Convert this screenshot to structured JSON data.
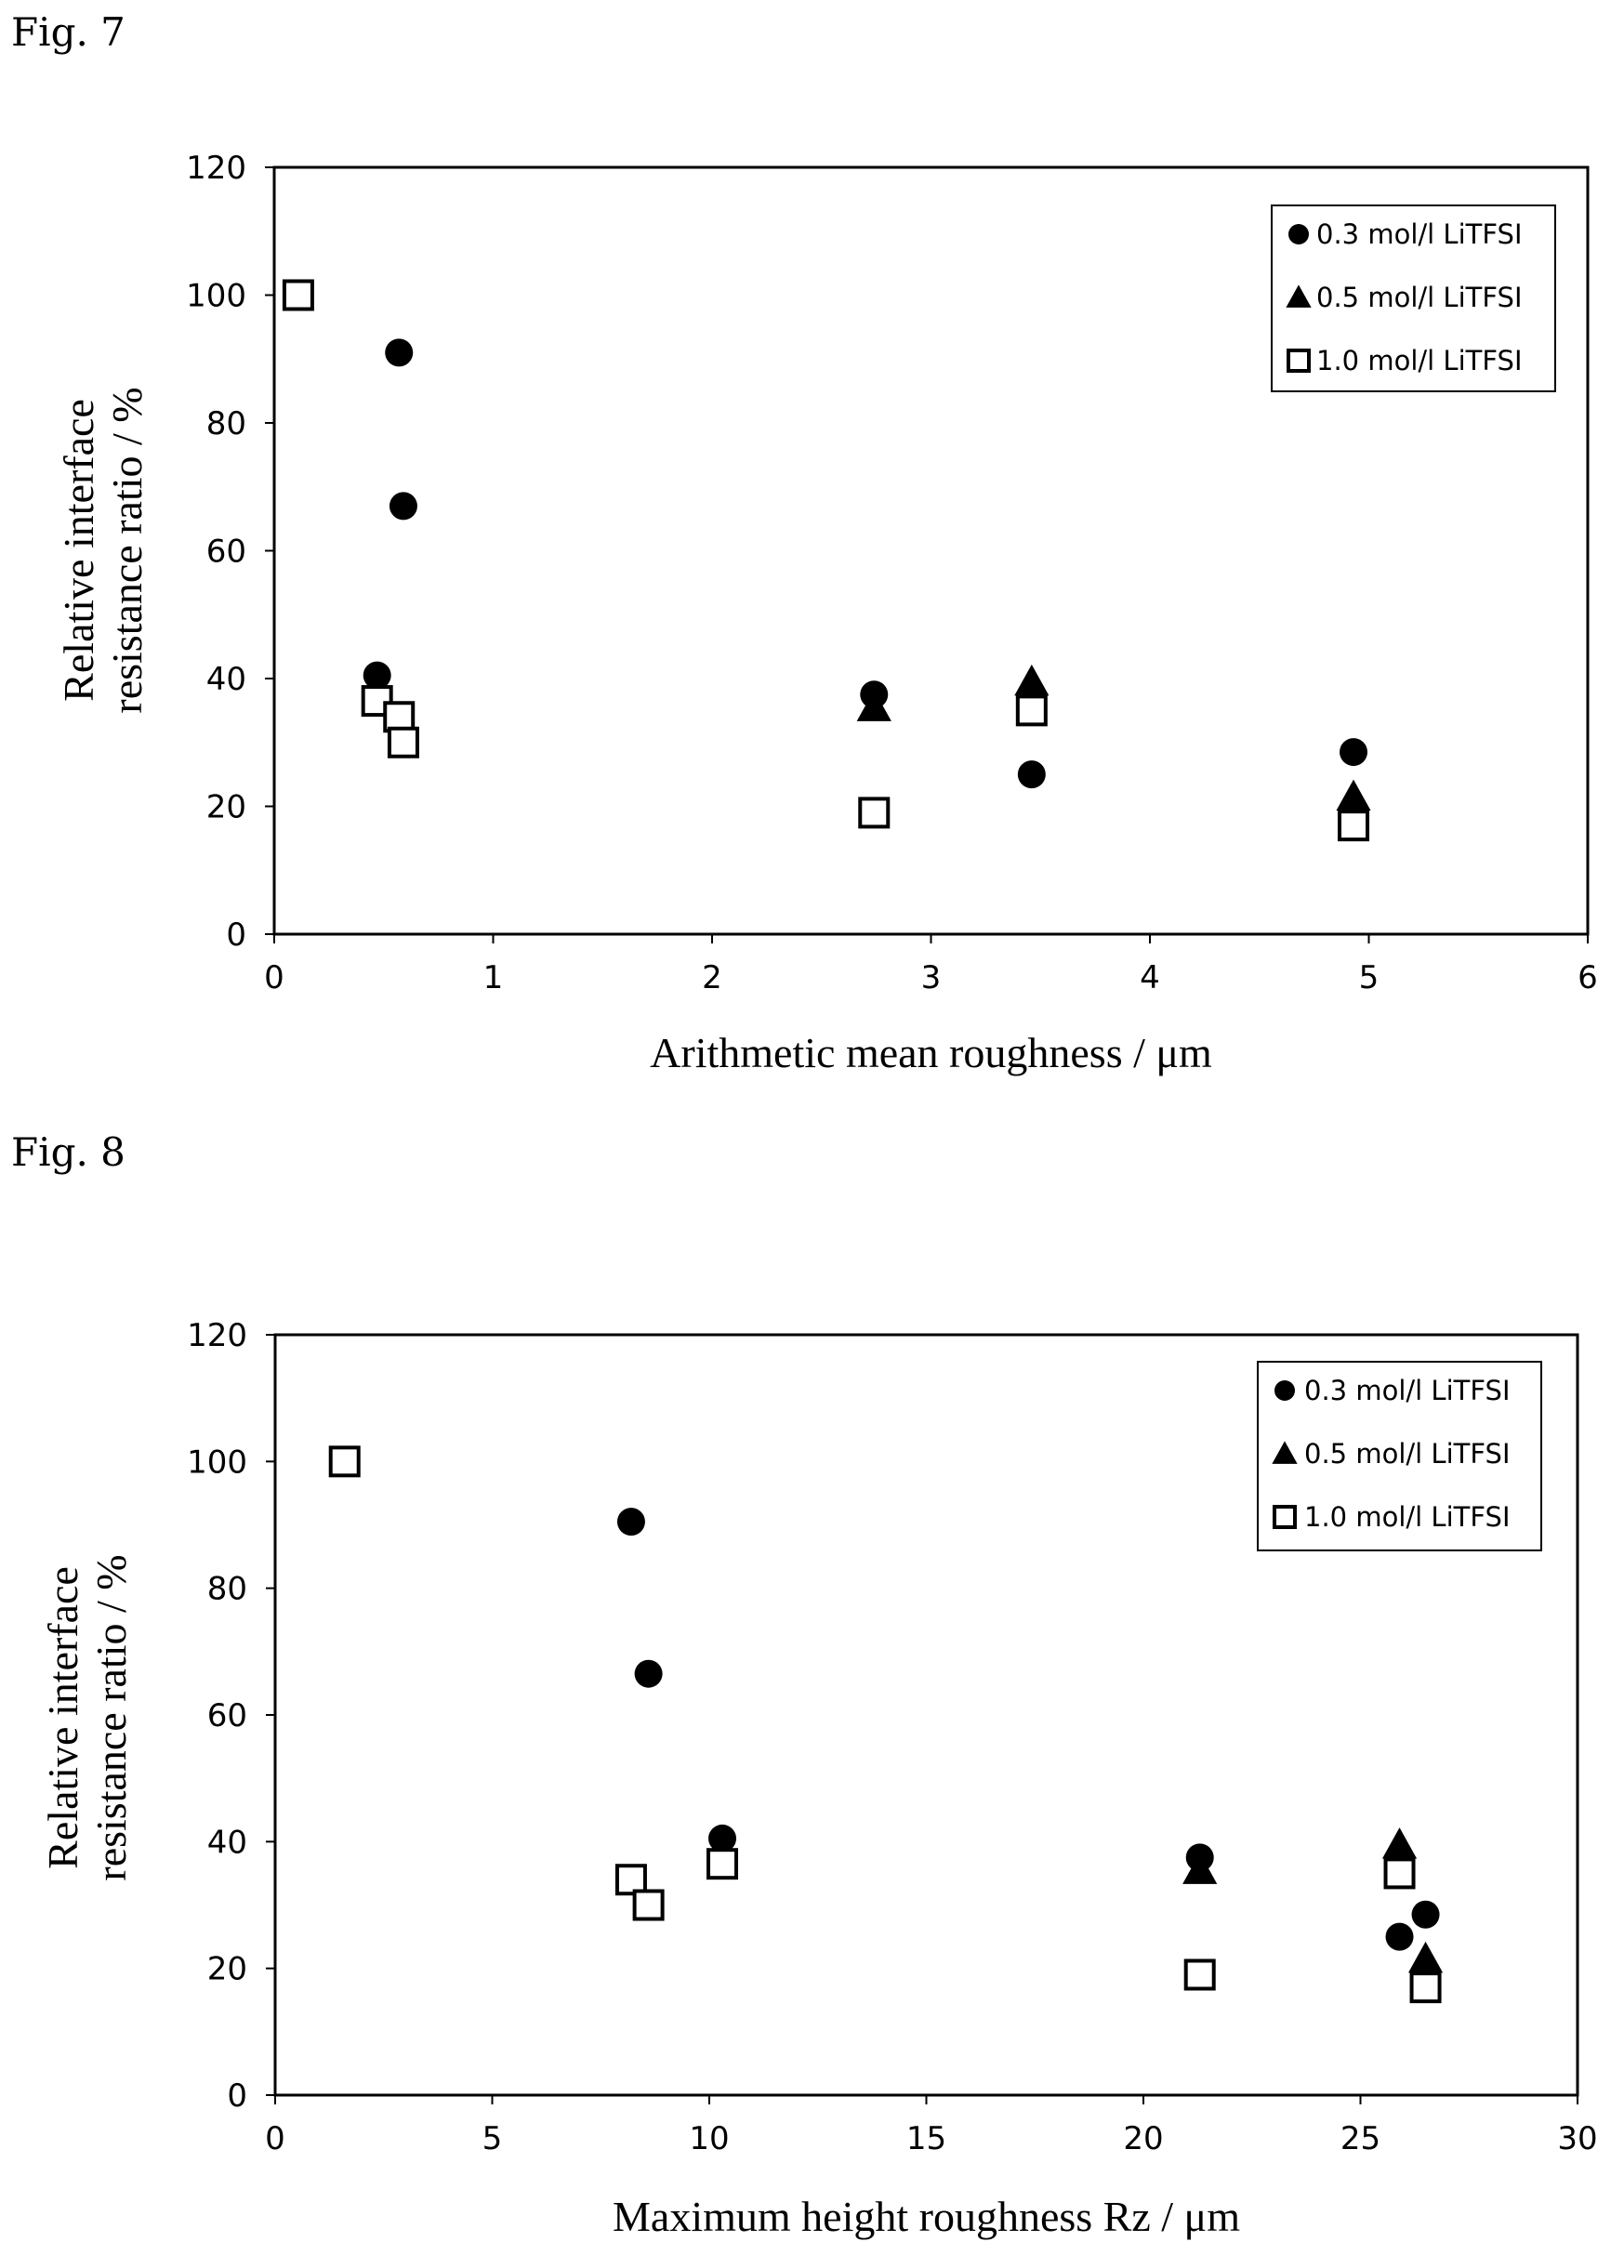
{
  "figures": [
    {
      "label": "Fig. 7"
    },
    {
      "label": "Fig. 8"
    }
  ],
  "chart_data": [
    {
      "type": "scatter",
      "title": "",
      "xlabel": "Arithmetic mean roughness / μm",
      "ylabel": "Relative interface resistance ratio / %",
      "ylabel_lines": [
        "Relative interface",
        "resistance ratio / %"
      ],
      "xlim": [
        0,
        6
      ],
      "ylim": [
        0,
        120
      ],
      "xticks": [
        "0",
        "1",
        "2",
        "3",
        "4",
        "5",
        "6"
      ],
      "yticks": [
        "0",
        "20",
        "40",
        "60",
        "80",
        "100",
        "120"
      ],
      "grid": false,
      "legend_position": "top-right",
      "series": [
        {
          "name": "0.3 mol/l LiTFSI",
          "marker": "circle",
          "points": [
            [
              0.57,
              91
            ],
            [
              0.59,
              67
            ],
            [
              0.47,
              40.5
            ],
            [
              2.74,
              37.5
            ],
            [
              3.46,
              25
            ],
            [
              4.93,
              28.5
            ]
          ]
        },
        {
          "name": "0.5 mol/l LiTFSI",
          "marker": "triangle",
          "points": [
            [
              2.74,
              35.5
            ],
            [
              3.46,
              39.5
            ],
            [
              4.93,
              21.5
            ]
          ]
        },
        {
          "name": "1.0 mol/l LiTFSI",
          "marker": "square",
          "points": [
            [
              0.11,
              100
            ],
            [
              0.47,
              36.5
            ],
            [
              0.57,
              34
            ],
            [
              0.59,
              30
            ],
            [
              2.74,
              19
            ],
            [
              3.46,
              35
            ],
            [
              4.93,
              17
            ]
          ]
        }
      ]
    },
    {
      "type": "scatter",
      "title": "",
      "xlabel": "Maximum height roughness Rz / μm",
      "ylabel": "Relative interface resistance ratio / %",
      "ylabel_lines": [
        "Relative interface",
        "resistance ratio / %"
      ],
      "xlim": [
        0,
        30
      ],
      "ylim": [
        0,
        120
      ],
      "xticks": [
        "0",
        "5",
        "10",
        "15",
        "20",
        "25",
        "30"
      ],
      "yticks": [
        "0",
        "20",
        "40",
        "60",
        "80",
        "100",
        "120"
      ],
      "grid": false,
      "legend_position": "top-right",
      "series": [
        {
          "name": "0.3 mol/l LiTFSI",
          "marker": "circle",
          "points": [
            [
              8.2,
              90.5
            ],
            [
              8.6,
              66.5
            ],
            [
              10.3,
              40.5
            ],
            [
              21.3,
              37.5
            ],
            [
              25.9,
              25
            ],
            [
              26.5,
              28.5
            ]
          ]
        },
        {
          "name": "0.5 mol/l LiTFSI",
          "marker": "triangle",
          "points": [
            [
              21.3,
              35.5
            ],
            [
              25.9,
              39.5
            ],
            [
              26.5,
              21.5
            ]
          ]
        },
        {
          "name": "1.0 mol/l LiTFSI",
          "marker": "square",
          "points": [
            [
              1.6,
              100
            ],
            [
              8.2,
              34
            ],
            [
              8.6,
              30
            ],
            [
              10.3,
              36.5
            ],
            [
              21.3,
              19
            ],
            [
              25.9,
              35
            ],
            [
              26.5,
              17
            ]
          ]
        }
      ]
    }
  ]
}
